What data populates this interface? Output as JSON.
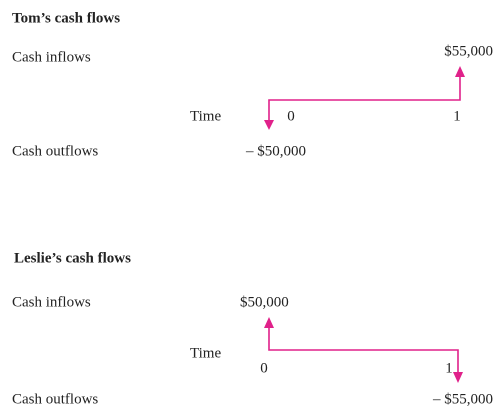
{
  "panels": [
    {
      "title": "Tom’s cash flows",
      "inflows_label": "Cash inflows",
      "outflows_label": "Cash outflows",
      "time_label": "Time",
      "periods": [
        "0",
        "1"
      ],
      "inflow": "$55,000",
      "outflow": "– $50,000"
    },
    {
      "title": "Leslie’s cash flows",
      "inflows_label": "Cash inflows",
      "outflows_label": "Cash outflows",
      "time_label": "Time",
      "periods": [
        "0",
        "1"
      ],
      "inflow": "$50,000",
      "outflow": "– $55,000"
    }
  ]
}
